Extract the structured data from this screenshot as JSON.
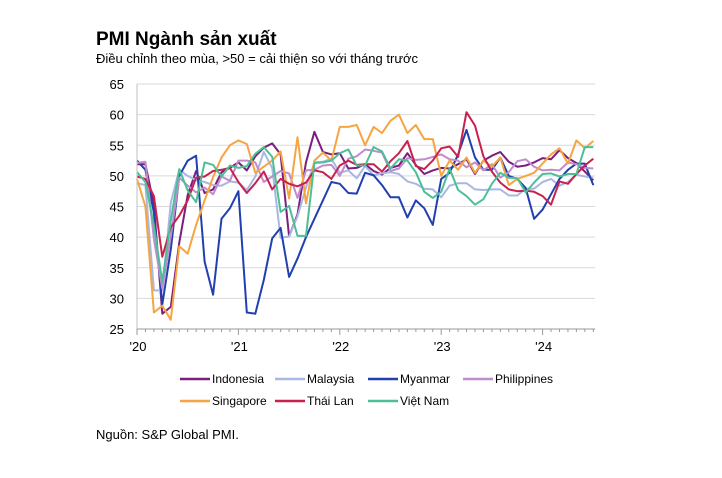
{
  "chart_data": {
    "type": "line",
    "title": "PMI Ngành sản xuất",
    "subtitle": "Điều chỉnh theo mùa, >50 = cải thiện so với tháng trước",
    "source": "Nguồn: S&P Global PMI.",
    "xlabel": "",
    "ylabel": "",
    "ylim": [
      25,
      65
    ],
    "yticks": [
      25,
      30,
      35,
      40,
      45,
      50,
      55,
      60,
      65
    ],
    "xtick_labels": [
      "'20",
      "'21",
      "'22",
      "'23",
      "'24"
    ],
    "x_start": "2020-01",
    "x_frequency": "monthly",
    "grid": true,
    "legend_position": "bottom",
    "series": [
      {
        "name": "Indonesia",
        "color": "#7b1f7f",
        "values": [
          51.9,
          51.9,
          45.3,
          27.5,
          28.6,
          39.1,
          46.9,
          50.8,
          47.2,
          47.8,
          50.6,
          51.3,
          52.2,
          50.9,
          53.2,
          54.6,
          55.3,
          53.5,
          40.1,
          43.7,
          52.2,
          57.2,
          53.9,
          53.5,
          53.7,
          51.2,
          51.3,
          51.9,
          50.8,
          50.2,
          51.3,
          51.7,
          53.7,
          51.8,
          50.3,
          50.9,
          51.3,
          51.2,
          51.9,
          52.7,
          50.3,
          52.5,
          53.3,
          53.9,
          52.3,
          51.5,
          51.7,
          52.2,
          52.9,
          52.7,
          54.2,
          52.9,
          52.1,
          50.7,
          49.3
        ]
      },
      {
        "name": "Malaysia",
        "color": "#a9b7e3",
        "values": [
          48.8,
          48.5,
          31.3,
          31.3,
          45.6,
          51.0,
          50.0,
          49.3,
          49.0,
          48.5,
          48.4,
          49.1,
          48.9,
          47.7,
          49.9,
          53.9,
          51.3,
          39.9,
          40.1,
          43.4,
          48.1,
          52.2,
          52.3,
          52.8,
          50.5,
          50.9,
          49.6,
          51.6,
          50.1,
          50.4,
          50.6,
          50.3,
          49.1,
          48.7,
          47.9,
          47.8,
          46.5,
          48.4,
          48.8,
          48.8,
          47.8,
          47.7,
          47.8,
          47.8,
          46.8,
          46.8,
          47.9,
          47.9,
          49.0,
          49.5,
          48.4,
          49.0,
          50.2,
          49.9,
          49.7
        ]
      },
      {
        "name": "Myanmar",
        "color": "#2140b0",
        "values": [
          52.5,
          51.0,
          44.0,
          29.0,
          38.0,
          50.0,
          52.5,
          53.3,
          36.0,
          30.6,
          43.0,
          44.7,
          47.5,
          27.7,
          27.5,
          33.0,
          39.8,
          41.5,
          33.5,
          36.5,
          40.0,
          43.0,
          46.0,
          49.0,
          48.7,
          47.2,
          47.1,
          50.5,
          50.1,
          48.5,
          46.5,
          46.5,
          43.2,
          46.0,
          44.7,
          42.0,
          49.5,
          50.5,
          53.5,
          57.5,
          53.0,
          51.0,
          51.0,
          53.0,
          50.0,
          49.5,
          48.0,
          43.0,
          44.5,
          47.0,
          49.5,
          51.0,
          52.0,
          52.0,
          48.5
        ]
      },
      {
        "name": "Philippines",
        "color": "#c08ccc",
        "values": [
          52.1,
          52.3,
          39.7,
          31.6,
          40.1,
          49.7,
          48.4,
          47.3,
          48.1,
          47.0,
          49.9,
          49.2,
          52.5,
          52.5,
          52.2,
          49.0,
          49.9,
          50.8,
          50.4,
          46.4,
          50.9,
          51.0,
          51.7,
          51.8,
          50.0,
          52.8,
          53.2,
          54.3,
          54.1,
          53.8,
          50.8,
          51.2,
          52.9,
          52.6,
          52.7,
          53.1,
          53.5,
          52.7,
          52.5,
          51.4,
          52.2,
          50.9,
          51.9,
          49.7,
          50.6,
          52.4,
          52.7,
          51.5,
          50.9,
          51.0,
          50.9,
          52.2,
          51.9,
          51.3,
          51.2
        ]
      },
      {
        "name": "Singapore",
        "color": "#f5a541",
        "values": [
          49.5,
          45.0,
          27.7,
          28.8,
          26.5,
          38.5,
          37.3,
          42.0,
          46.0,
          49.8,
          53.0,
          55.0,
          55.8,
          55.2,
          50.5,
          51.5,
          52.5,
          54.0,
          46.3,
          56.3,
          45.5,
          52.5,
          53.8,
          52.5,
          58.0,
          58.0,
          58.3,
          55.0,
          58.0,
          57.0,
          59.0,
          60.0,
          57.0,
          58.3,
          56.0,
          56.0,
          50.0,
          52.5,
          51.0,
          53.0,
          50.5,
          52.5,
          51.5,
          53.0,
          48.5,
          49.5,
          50.0,
          50.5,
          52.0,
          53.5,
          54.5,
          52.0,
          55.8,
          54.5,
          55.7
        ]
      },
      {
        "name": "Thái Lan",
        "color": "#c8214e",
        "values": [
          49.9,
          49.5,
          46.7,
          36.8,
          41.6,
          43.5,
          46.0,
          49.7,
          49.9,
          50.8,
          51.0,
          51.3,
          49.0,
          47.2,
          48.8,
          50.7,
          47.8,
          49.5,
          48.7,
          48.3,
          48.9,
          50.9,
          50.6,
          49.5,
          51.7,
          52.5,
          51.8,
          51.9,
          51.9,
          50.7,
          52.4,
          53.7,
          55.7,
          51.6,
          51.1,
          52.5,
          54.5,
          54.8,
          53.1,
          60.4,
          58.2,
          53.2,
          50.7,
          48.9,
          47.8,
          47.5,
          47.6,
          47.4,
          46.7,
          45.3,
          49.1,
          48.7,
          50.3,
          51.7,
          52.8
        ]
      },
      {
        "name": "Việt Nam",
        "color": "#4cbf97",
        "values": [
          50.6,
          49.0,
          41.9,
          32.7,
          42.7,
          51.1,
          47.6,
          45.7,
          52.2,
          51.8,
          49.9,
          51.7,
          51.3,
          51.6,
          53.6,
          54.7,
          53.1,
          44.1,
          45.1,
          40.2,
          40.2,
          52.1,
          52.2,
          52.5,
          53.7,
          54.3,
          51.7,
          51.7,
          54.7,
          54.0,
          51.2,
          52.7,
          52.5,
          50.6,
          47.4,
          46.4,
          47.4,
          51.2,
          47.7,
          46.7,
          45.3,
          46.2,
          48.7,
          50.5,
          49.7,
          49.6,
          47.3,
          48.9,
          50.3,
          50.4,
          49.9,
          50.3,
          50.3,
          54.7,
          54.7
        ]
      }
    ]
  }
}
